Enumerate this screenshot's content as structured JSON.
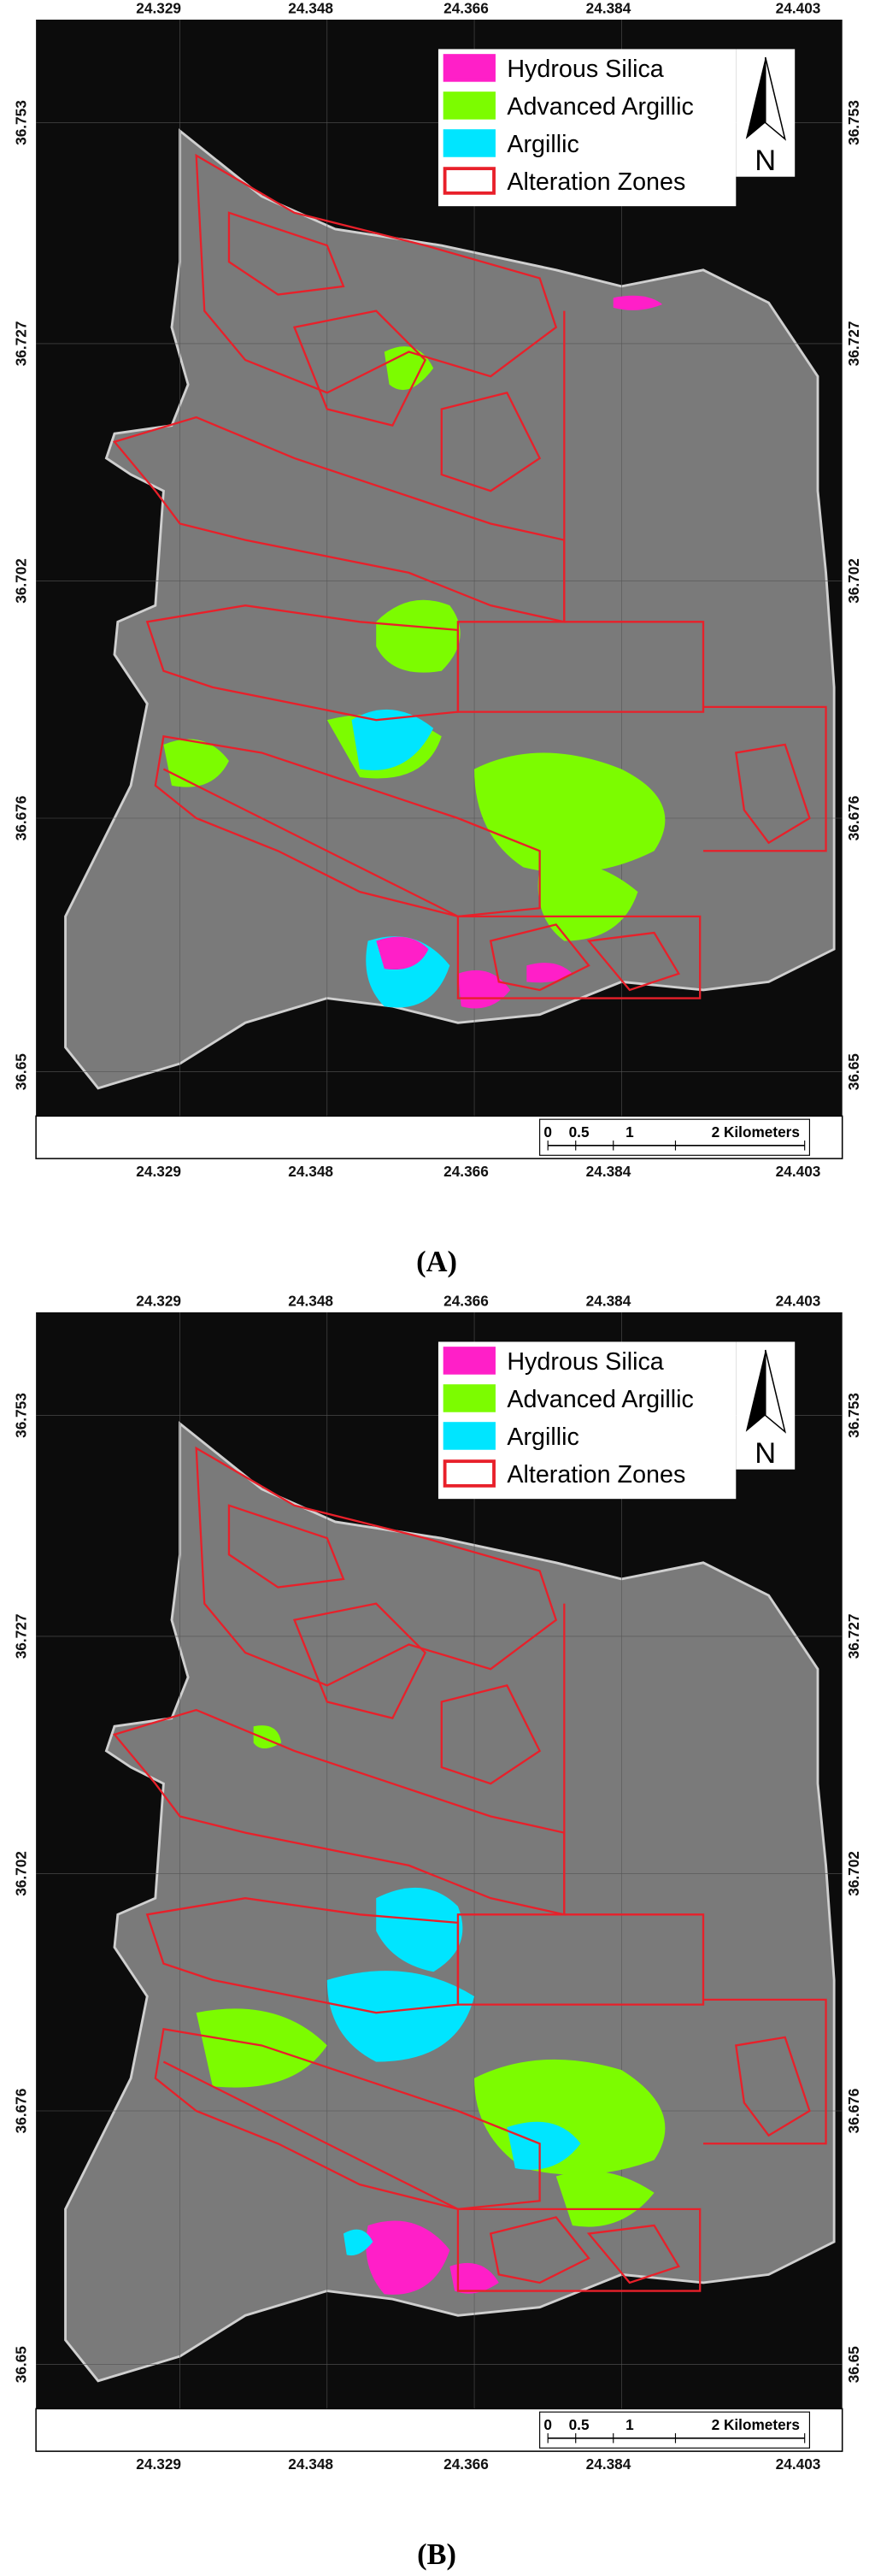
{
  "panels": [
    {
      "label": "(A)",
      "legend": [
        {
          "label": "Hydrous Silica",
          "fill": "#ff1fc8",
          "stroke": "#ff1fc8"
        },
        {
          "label": "Advanced Argillic",
          "fill": "#7cfc00",
          "stroke": "#7cfc00"
        },
        {
          "label": "Argillic",
          "fill": "#00e5ff",
          "stroke": "#00e5ff"
        },
        {
          "label": "Alteration Zones",
          "fill": "#ffffff",
          "stroke": "#e8202a"
        }
      ],
      "north": "N",
      "x_ticks": [
        "24.329",
        "24.348",
        "24.366",
        "24.384",
        "24.403"
      ],
      "y_ticks": [
        "36.753",
        "36.727",
        "36.702",
        "36.676",
        "36.65"
      ],
      "scale_bar": [
        "0",
        "0.5",
        "1",
        "2 Kilometers"
      ]
    },
    {
      "label": "(B)",
      "legend": [
        {
          "label": "Hydrous Silica",
          "fill": "#ff1fc8",
          "stroke": "#ff1fc8"
        },
        {
          "label": "Advanced Argillic",
          "fill": "#7cfc00",
          "stroke": "#7cfc00"
        },
        {
          "label": "Argillic",
          "fill": "#00e5ff",
          "stroke": "#00e5ff"
        },
        {
          "label": "Alteration Zones",
          "fill": "#ffffff",
          "stroke": "#e8202a"
        }
      ],
      "north": "N",
      "x_ticks": [
        "24.329",
        "24.348",
        "24.366",
        "24.384",
        "24.403"
      ],
      "y_ticks": [
        "36.753",
        "36.727",
        "36.702",
        "36.676",
        "36.65"
      ],
      "scale_bar": [
        "0",
        "0.5",
        "1",
        "2 Kilometers"
      ]
    }
  ]
}
